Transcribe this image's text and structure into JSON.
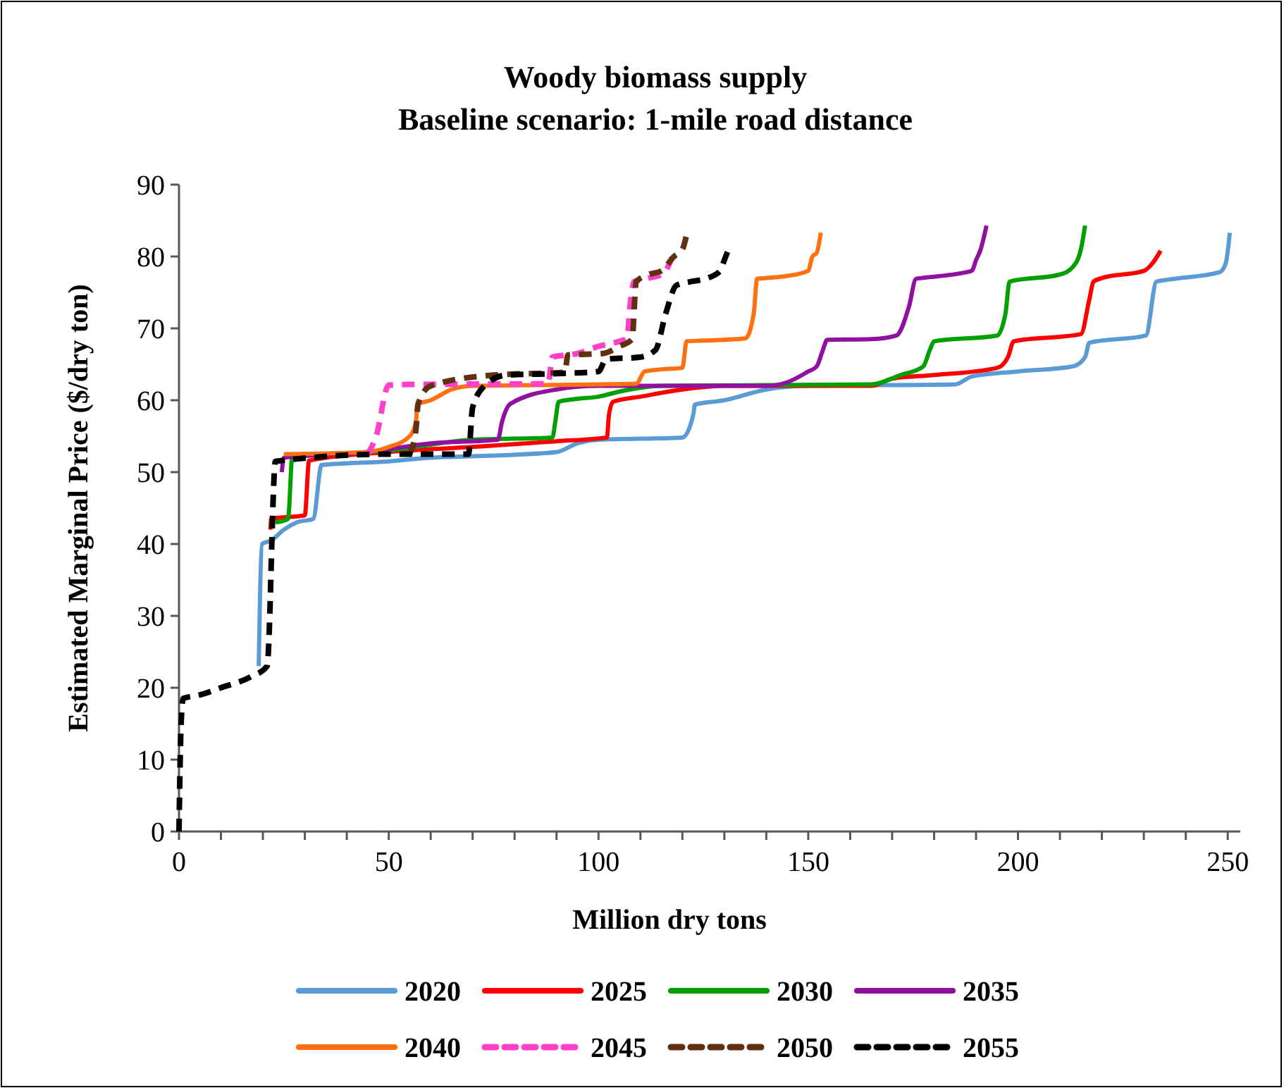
{
  "chart_data": {
    "type": "line",
    "title": "Woody biomass supply",
    "subtitle": "Baseline scenario: 1-mile road distance",
    "xlabel": "Million dry tons",
    "ylabel": "Estimated Marginal Price ($/dry ton)",
    "xlim": [
      0,
      253
    ],
    "ylim": [
      0,
      90
    ],
    "xticks": [
      0,
      {
        "value": 10,
        "label": null
      },
      {
        "value": 20,
        "label": null
      },
      {
        "value": 30,
        "label": null
      },
      {
        "value": 40,
        "label": null
      },
      50,
      {
        "value": 60,
        "label": null
      },
      {
        "value": 70,
        "label": null
      },
      {
        "value": 80,
        "label": null
      },
      {
        "value": 90,
        "label": null
      },
      100,
      {
        "value": 110,
        "label": null
      },
      {
        "value": 120,
        "label": null
      },
      {
        "value": 130,
        "label": null
      },
      {
        "value": 140,
        "label": null
      },
      150,
      {
        "value": 160,
        "label": null
      },
      {
        "value": 170,
        "label": null
      },
      {
        "value": 180,
        "label": null
      },
      {
        "value": 190,
        "label": null
      },
      200,
      {
        "value": 210,
        "label": null
      },
      {
        "value": 220,
        "label": null
      },
      {
        "value": 230,
        "label": null
      },
      {
        "value": 240,
        "label": null
      },
      250
    ],
    "yticks": [
      0,
      10,
      20,
      30,
      40,
      50,
      60,
      70,
      80,
      90
    ],
    "grid": false,
    "legend": "bottom",
    "series": [
      {
        "name": "2020",
        "color": "#5b9bd5",
        "line_style": "solid",
        "x": [
          19,
          19.8,
          22,
          25,
          28,
          32,
          34,
          50,
          60,
          75,
          90,
          95,
          100,
          120,
          122.6,
          123,
          130,
          140,
          150,
          185,
          189,
          200,
          213,
          216,
          217,
          230.5,
          233,
          236,
          248,
          249.5,
          250.5
        ],
        "values": [
          23,
          40,
          40.5,
          42,
          43,
          43.5,
          51,
          51.5,
          52,
          52.3,
          52.8,
          54,
          54.5,
          54.8,
          58,
          59.4,
          60,
          61.5,
          62,
          62.2,
          63.3,
          64,
          64.7,
          66,
          68,
          69,
          76.5,
          76.8,
          77.8,
          79,
          83.3
        ]
      },
      {
        "name": "2025",
        "color": "#ff0000",
        "line_style": "solid",
        "x": [
          21.8,
          22,
          30,
          31,
          50,
          70,
          90,
          102,
          102.5,
          103.5,
          110,
          120,
          130,
          165,
          170,
          180,
          195,
          197.6,
          199,
          215,
          217,
          218,
          220,
          230,
          232,
          234
        ],
        "values": [
          42,
          43.5,
          44,
          51.6,
          52.8,
          53.5,
          54.3,
          54.8,
          58,
          59.8,
          60.5,
          61.5,
          62,
          62,
          63,
          63.5,
          64.5,
          66,
          68.2,
          69.2,
          74,
          76.5,
          77,
          78,
          79,
          80.8
        ]
      },
      {
        "name": "2030",
        "color": "#00a000",
        "line_style": "solid",
        "x": [
          23,
          26,
          27,
          50,
          70,
          89,
          89.7,
          90.5,
          95,
          100,
          105,
          115,
          165,
          172,
          177.4,
          179,
          180,
          195,
          197,
          198,
          210,
          213,
          215,
          216
        ],
        "values": [
          43,
          43.5,
          52,
          53,
          54.5,
          54.8,
          57,
          59.8,
          60.2,
          60.5,
          61.2,
          62,
          62.2,
          63.5,
          64.7,
          67,
          68.2,
          69,
          72,
          76.5,
          77.5,
          78.5,
          81,
          84.3
        ]
      },
      {
        "name": "2035",
        "color": "#9010a0",
        "line_style": "solid",
        "x": [
          24.5,
          25,
          45,
          60,
          76,
          77,
          79,
          90,
          100,
          140,
          145,
          150,
          152,
          153.5,
          154.5,
          165,
          171,
          174,
          175.7,
          177,
          189,
          190,
          191,
          192.5
        ],
        "values": [
          50,
          52,
          52.8,
          54,
          54.5,
          57,
          59.5,
          61.5,
          62,
          62,
          62.5,
          64,
          64.7,
          67,
          68.4,
          68.5,
          69,
          73,
          76.9,
          77,
          78,
          79.5,
          80.8,
          84.3
        ]
      },
      {
        "name": "2040",
        "color": "#ff7010",
        "line_style": "solid",
        "x": [
          25,
          45,
          50,
          55,
          56.5,
          56.8,
          60,
          65,
          70,
          100,
          109,
          111,
          115,
          120,
          121,
          125,
          135,
          137,
          137.8,
          140,
          145,
          150,
          151,
          152,
          153
        ],
        "values": [
          52.5,
          52.8,
          53.5,
          55,
          57,
          59.4,
          60,
          61.5,
          62,
          62.2,
          62.3,
          64,
          64.3,
          64.5,
          68.2,
          68.3,
          68.6,
          72,
          76.9,
          77,
          77.3,
          78,
          80,
          80.5,
          83.3
        ]
      },
      {
        "name": "2045",
        "color": "#ff40c8",
        "line_style": "dashed",
        "x": [
          45,
          47,
          50,
          55,
          88,
          89,
          95,
          100,
          105,
          106.8,
          107.5,
          108.5,
          112,
          115,
          116,
          117.6
        ],
        "values": [
          52.5,
          55,
          62.1,
          62.2,
          62.3,
          66,
          66.5,
          67.5,
          68.2,
          68.6,
          73,
          76.5,
          77,
          77.5,
          78,
          80
        ]
      },
      {
        "name": "2050",
        "color": "#603010",
        "line_style": "dashed",
        "x": [
          55,
          56.5,
          57,
          60,
          75,
          92,
          92.7,
          101,
          105,
          108,
          109,
          112,
          115,
          118,
          120,
          121
        ],
        "values": [
          52.5,
          56,
          59.5,
          62,
          63.5,
          63.9,
          66.3,
          66.5,
          67.5,
          68.5,
          76.5,
          77.5,
          78,
          80,
          81,
          83
        ]
      },
      {
        "name": "2055",
        "color": "#000000",
        "line_style": "dashed",
        "x": [
          0,
          0.5,
          1,
          5,
          10,
          17,
          21,
          23,
          50,
          69,
          70,
          73,
          78,
          90,
          100,
          101.8,
          110,
          113.6,
          116,
          118.6,
          122,
          126,
          129,
          130,
          131
        ],
        "values": [
          0,
          15,
          18.5,
          19,
          20,
          21.5,
          23,
          51.5,
          52.5,
          52.5,
          59,
          62.1,
          63.5,
          63.7,
          64,
          65.7,
          66,
          67,
          72,
          76,
          76.5,
          77,
          78,
          79.5,
          81
        ]
      }
    ]
  }
}
